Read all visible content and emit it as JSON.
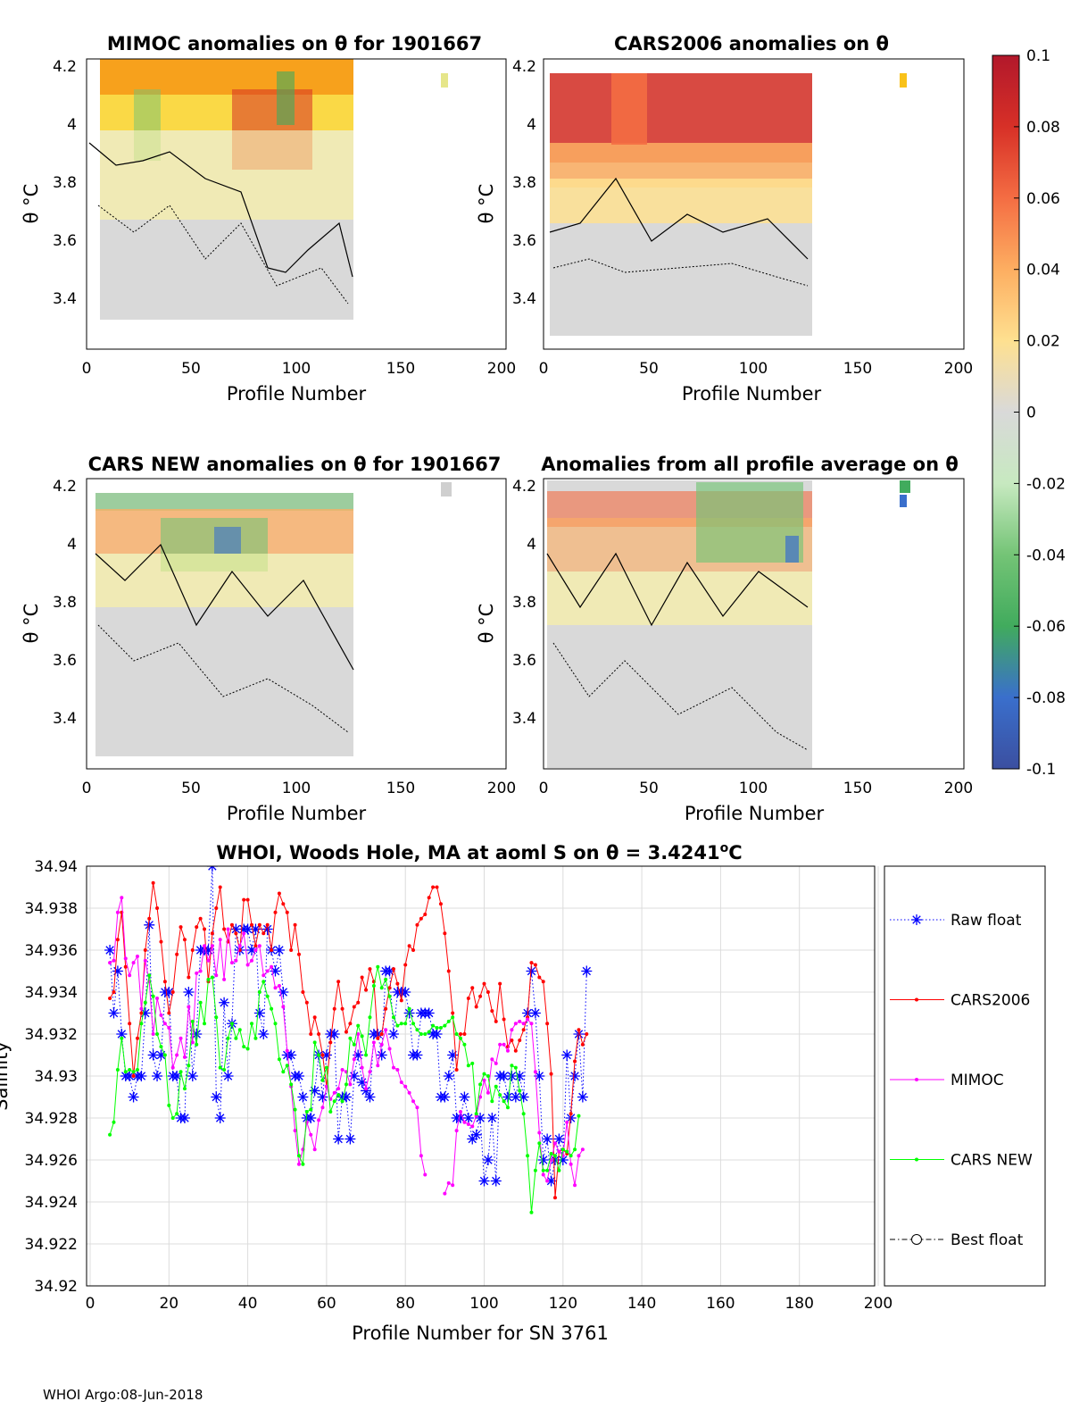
{
  "panels": [
    {
      "id": "mimoc",
      "title": "MIMOC anomalies on θ  for 1901667",
      "xlabel": "Profile Number",
      "ylabel": "θ °C",
      "xticks": [
        "0",
        "50",
        "100",
        "150",
        "200"
      ],
      "yticks": [
        "4.2",
        "4",
        "3.8",
        "3.6",
        "3.4"
      ]
    },
    {
      "id": "cars2006",
      "title": "CARS2006 anomalies on θ",
      "xlabel": "Profile Number",
      "ylabel": "θ °C",
      "xticks": [
        "0",
        "50",
        "100",
        "150",
        "200"
      ],
      "yticks": [
        "4.2",
        "4",
        "3.8",
        "3.6",
        "3.4"
      ]
    },
    {
      "id": "carsnew",
      "title": "CARS NEW anomalies on θ for 1901667",
      "xlabel": "Profile Number",
      "ylabel": "θ °C",
      "xticks": [
        "0",
        "50",
        "100",
        "150",
        "200"
      ],
      "yticks": [
        "4.2",
        "4",
        "3.8",
        "3.6",
        "3.4"
      ]
    },
    {
      "id": "allavg",
      "title": "Anomalies from all profile average on θ",
      "xlabel": "Profile Number",
      "ylabel": "θ °C",
      "xticks": [
        "0",
        "50",
        "100",
        "150",
        "200"
      ],
      "yticks": [
        "4.2",
        "4",
        "3.8",
        "3.6",
        "3.4"
      ]
    }
  ],
  "colorbar": {
    "labels": [
      "0.1",
      "0.08",
      "0.06",
      "0.04",
      "0.02",
      "0",
      "-0.02",
      "-0.04",
      "-0.06",
      "-0.08",
      "-0.1"
    ],
    "colors": [
      "#b2182b",
      "#d73027",
      "#f46d43",
      "#fdae61",
      "#fee090",
      "#d9d9d9",
      "#c7e9c0",
      "#74c476",
      "#41ab5d",
      "#3a6fcc",
      "#3b4fa0"
    ]
  },
  "footer": "WHOI Argo:08-Jun-2018",
  "chart_data": [
    {
      "type": "heatmap",
      "title": "MIMOC anomalies on θ  for 1901667",
      "xlabel": "Profile Number",
      "ylabel": "θ °C",
      "xlim": [
        0,
        200
      ],
      "ylim": [
        3.25,
        4.22
      ],
      "clim": [
        -0.1,
        0.1
      ]
    },
    {
      "type": "heatmap",
      "title": "CARS2006 anomalies on θ",
      "xlabel": "Profile Number",
      "ylabel": "θ °C",
      "xlim": [
        0,
        200
      ],
      "ylim": [
        3.25,
        4.22
      ],
      "clim": [
        -0.1,
        0.1
      ]
    },
    {
      "type": "heatmap",
      "title": "CARS NEW anomalies on θ for 1901667",
      "xlabel": "Profile Number",
      "ylabel": "θ °C",
      "xlim": [
        0,
        200
      ],
      "ylim": [
        3.25,
        4.22
      ],
      "clim": [
        -0.1,
        0.1
      ]
    },
    {
      "type": "heatmap",
      "title": "Anomalies from all profile average on θ",
      "xlabel": "Profile Number",
      "ylabel": "θ °C",
      "xlim": [
        0,
        200
      ],
      "ylim": [
        3.25,
        4.22
      ],
      "clim": [
        -0.1,
        0.1
      ]
    },
    {
      "type": "line",
      "title": "WHOI, Woods Hole, MA at aoml S on θ = 3.4241°C",
      "title_main": "WHOI, Woods Hole, MA at aoml S on θ = 3.4241",
      "title_sup": "o",
      "title_end": "C",
      "xlabel": "Profile Number for SN 3761",
      "ylabel": "Salinity",
      "xlim": [
        0,
        200
      ],
      "ylim": [
        34.92,
        34.94
      ],
      "xticks": [
        "0",
        "20",
        "40",
        "60",
        "80",
        "100",
        "120",
        "140",
        "160",
        "180",
        "200"
      ],
      "yticks": [
        "34.94",
        "34.938",
        "34.936",
        "34.934",
        "34.932",
        "34.93",
        "34.928",
        "34.926",
        "34.924",
        "34.922",
        "34.92"
      ],
      "grid": true,
      "legend_position": "outside-right",
      "series": [
        {
          "name": "Raw float",
          "color": "#0000ff",
          "style": "dotted-star",
          "start": 5,
          "values": [
            34.936,
            34.933,
            34.935,
            34.932,
            34.93,
            34.93,
            34.929,
            34.93,
            34.93,
            34.933,
            34.9372,
            34.931,
            34.93,
            34.931,
            34.934,
            34.934,
            34.93,
            34.93,
            34.928,
            34.928,
            34.934,
            34.93,
            34.932,
            34.936,
            34.936,
            34.936,
            34.94,
            34.929,
            34.928,
            34.9335,
            34.93,
            34.9325,
            34.937,
            34.936,
            34.937,
            34.937,
            34.936,
            34.937,
            34.933,
            34.932,
            34.937,
            34.936,
            34.935,
            34.936,
            34.934,
            34.931,
            34.931,
            34.93,
            34.93,
            34.929,
            34.928,
            34.928,
            34.9293,
            34.931,
            34.929,
            34.931,
            34.932,
            34.932,
            34.927,
            34.929,
            34.929,
            34.927,
            34.93,
            34.931,
            34.9297,
            34.9293,
            34.929,
            34.932,
            34.932,
            34.931,
            34.935,
            34.935,
            34.932,
            34.934,
            34.934,
            34.934,
            34.933,
            34.931,
            34.931,
            34.933,
            34.933,
            34.933,
            34.932,
            34.932,
            34.929,
            34.929,
            34.93,
            34.931,
            34.928,
            34.928,
            34.929,
            34.928,
            34.927,
            34.9272,
            34.928,
            34.925,
            34.926,
            34.928,
            34.925,
            34.93,
            34.93,
            34.929,
            34.93,
            34.929,
            34.93,
            34.929,
            34.933,
            34.935,
            34.933,
            34.93,
            34.926,
            34.927,
            34.925,
            34.926,
            34.927,
            34.926,
            34.931,
            34.928,
            34.93,
            34.932,
            34.929,
            34.935
          ]
        },
        {
          "name": "CARS2006",
          "color": "#ff0000",
          "style": "solid-dot",
          "start": 5,
          "values": [
            34.9337,
            34.934,
            34.9365,
            34.9378,
            34.9352,
            34.9325,
            34.93,
            34.9318,
            34.933,
            34.936,
            34.9375,
            34.9392,
            34.938,
            34.9364,
            34.9345,
            34.933,
            34.934,
            34.9358,
            34.9371,
            34.9365,
            34.9347,
            34.936,
            34.9371,
            34.9375,
            34.937,
            34.9345,
            34.9368,
            34.938,
            34.939,
            34.937,
            34.9364,
            34.9372,
            34.9368,
            34.936,
            34.9384,
            34.9384,
            34.9372,
            34.9362,
            34.9372,
            34.9368,
            34.9372,
            34.936,
            34.9378,
            34.9387,
            34.9382,
            34.9378,
            34.936,
            34.9372,
            34.9358,
            34.934,
            34.9335,
            34.932,
            34.9328,
            34.932,
            34.931,
            34.9295,
            34.9316,
            34.9332,
            34.9345,
            34.9332,
            34.9321,
            34.9325,
            34.9333,
            34.9335,
            34.9347,
            34.9341,
            34.9351,
            34.9345,
            34.9318,
            34.932,
            34.9332,
            34.9342,
            34.9351,
            34.9344,
            34.9336,
            34.9353,
            34.9362,
            34.936,
            34.9372,
            34.9375,
            34.9377,
            34.9385,
            34.939,
            34.939,
            34.9382,
            34.9368,
            34.935,
            34.933,
            34.9303,
            34.932,
            34.932,
            34.9337,
            34.9342,
            34.9333,
            34.9338,
            34.9344,
            34.934,
            34.9331,
            34.9326,
            34.9344,
            34.9327,
            34.9314,
            34.9317,
            34.9312,
            34.9317,
            34.9322,
            34.9328,
            34.9354,
            34.9353,
            34.9347,
            34.9345,
            34.9325,
            34.9301,
            34.9242,
            34.9264,
            34.9265,
            34.9263,
            34.9282,
            34.9307,
            34.9322,
            34.9315,
            34.932
          ]
        },
        {
          "name": "MIMOC",
          "color": "#ff00ff",
          "style": "solid-dot",
          "start": 5,
          "values": [
            34.9354,
            34.9355,
            34.9378,
            34.9385,
            34.9356,
            34.9348,
            34.9354,
            34.9357,
            34.9332,
            34.9355,
            34.9345,
            34.932,
            34.9337,
            34.9329,
            34.9325,
            34.9323,
            34.9304,
            34.931,
            34.9318,
            34.9309,
            34.9333,
            34.9316,
            34.9349,
            34.935,
            34.9362,
            34.9355,
            34.9362,
            34.9348,
            34.9365,
            34.9346,
            34.937,
            34.9354,
            34.9355,
            34.9362,
            34.9368,
            34.9353,
            34.9355,
            34.936,
            34.9362,
            34.9348,
            34.935,
            34.9352,
            34.9342,
            34.9343,
            34.9333,
            34.9312,
            34.9295,
            34.9274,
            34.9258,
            34.9265,
            34.9278,
            34.9272,
            34.9265,
            34.9279,
            34.9285,
            34.9295,
            34.9289,
            34.9292,
            34.9294,
            34.9303,
            34.9302,
            34.9296,
            34.9308,
            34.932,
            34.9304,
            34.9294,
            34.9302,
            34.9316,
            34.9305,
            34.9315,
            34.9322,
            34.9313,
            34.9304,
            34.9303,
            34.9297,
            34.9295,
            34.9292,
            34.9288,
            34.9285,
            34.9262,
            34.9253,
            null,
            null,
            null,
            null,
            34.9244,
            34.9249,
            34.9248,
            34.9274,
            34.9283,
            34.9278,
            34.9277,
            34.9276,
            34.9281,
            34.929,
            34.9298,
            34.9292,
            34.9308,
            34.9306,
            34.9315,
            34.9315,
            34.9312,
            34.9322,
            34.9325,
            34.9326,
            34.9325,
            34.9327,
            34.9325,
            34.9302,
            34.9273,
            34.9253,
            34.925,
            34.926,
            34.9268,
            34.9264,
            34.9262,
            34.9278,
            34.9258,
            34.9248,
            34.9262,
            34.9265
          ]
        },
        {
          "name": "CARS NEW",
          "color": "#00ff00",
          "style": "solid-dot",
          "start": 5,
          "values": [
            34.9272,
            34.9278,
            34.9303,
            34.9318,
            34.9302,
            34.9303,
            34.9302,
            34.9303,
            34.9325,
            34.9335,
            34.9348,
            34.9338,
            34.932,
            34.9314,
            34.931,
            34.9286,
            34.928,
            34.9282,
            34.9302,
            34.9294,
            34.9305,
            34.9326,
            34.9315,
            34.9335,
            34.9325,
            34.9346,
            34.9347,
            34.9328,
            34.9304,
            34.9303,
            34.9318,
            34.9325,
            34.9318,
            34.9322,
            34.9314,
            34.9313,
            34.9325,
            34.9318,
            34.934,
            34.9345,
            34.9338,
            34.9332,
            34.9325,
            34.9308,
            34.9302,
            34.9305,
            34.9296,
            34.9284,
            34.9262,
            34.9258,
            34.9283,
            34.9284,
            34.9316,
            34.931,
            34.9298,
            34.9304,
            34.9283,
            34.9288,
            34.9291,
            34.9288,
            34.9296,
            34.9318,
            34.9315,
            34.9324,
            34.9319,
            34.931,
            34.9328,
            34.9343,
            34.9352,
            34.9342,
            34.9346,
            34.9338,
            34.9328,
            34.9324,
            34.9325,
            34.9325,
            34.9332,
            34.9325,
            34.9322,
            34.932,
            34.932,
            34.9321,
            34.9324,
            34.9323,
            34.9323,
            34.9324,
            34.9326,
            34.9328,
            34.932,
            34.9318,
            34.9315,
            34.9305,
            34.9306,
            34.9282,
            34.9296,
            34.9301,
            34.93,
            34.9288,
            34.9295,
            34.9291,
            34.9288,
            34.9285,
            34.9305,
            34.9304,
            34.9293,
            34.9282,
            34.9262,
            34.9235,
            34.9255,
            34.9268,
            34.9255,
            34.9255,
            34.9263,
            34.9262,
            34.9255,
            34.9265,
            34.9264,
            34.9262,
            34.9265,
            34.9281
          ]
        },
        {
          "name": "Best float",
          "color": "#000000",
          "style": "dashdot-circle",
          "start": 5,
          "values": []
        }
      ]
    }
  ]
}
